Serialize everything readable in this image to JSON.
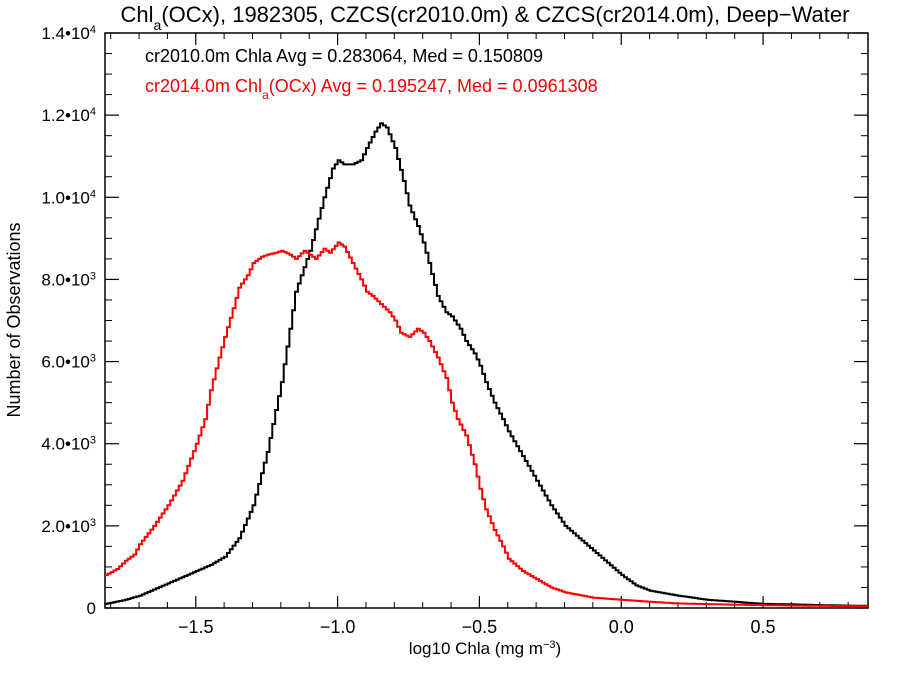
{
  "chart_data": {
    "type": "line",
    "title_html": "Chl<tspan baseline-shift=\"sub\" font-size=\"14\">a</tspan>(OCx), 1982305, CZCS(cr2010.0m) &amp; CZCS(cr2014.0m), Deep-Water",
    "title": {
      "main": "Chl",
      "sub": "a",
      "rest": "(OCx), 1982305, CZCS(cr2010.0m) & CZCS(cr2014.0m), Deep−Water"
    },
    "xlabel": {
      "main": "log10 Chla (mg m",
      "sup": "−3",
      "end": ")"
    },
    "ylabel": "Number of Observations",
    "xlim": [
      -1.82,
      0.87
    ],
    "ylim": [
      0,
      14000
    ],
    "x_ticks": [
      {
        "value": -1.5,
        "label": "−1.5"
      },
      {
        "value": -1.0,
        "label": "−1.0"
      },
      {
        "value": -0.5,
        "label": "−0.5"
      },
      {
        "value": 0.0,
        "label": "0.0"
      },
      {
        "value": 0.5,
        "label": "0.5"
      }
    ],
    "y_ticks": [
      {
        "value": 0,
        "mant": "0",
        "exp": ""
      },
      {
        "value": 2000,
        "mant": "2.0•10",
        "exp": "3"
      },
      {
        "value": 4000,
        "mant": "4.0•10",
        "exp": "3"
      },
      {
        "value": 6000,
        "mant": "6.0•10",
        "exp": "3"
      },
      {
        "value": 8000,
        "mant": "8.0•10",
        "exp": "3"
      },
      {
        "value": 10000,
        "mant": "1.0•10",
        "exp": "4"
      },
      {
        "value": 12000,
        "mant": "1.2•10",
        "exp": "4"
      },
      {
        "value": 14000,
        "mant": "1.4•10",
        "exp": "4"
      }
    ],
    "grid": false,
    "legend": {
      "placement": "top-left",
      "entries": [
        {
          "text": "cr2010.0m Chla Avg = 0.283064, Med = 0.150809",
          "color": "#000000"
        },
        {
          "main": "cr2014.0m Chl",
          "sub": "a",
          "rest": "(OCx) Avg = 0.195247, Med = 0.0961308",
          "color": "#ff0000"
        }
      ]
    },
    "series": [
      {
        "name": "cr2010.0m",
        "color": "#000000",
        "step": true,
        "points": [
          [
            -1.82,
            100
          ],
          [
            -1.75,
            200
          ],
          [
            -1.7,
            300
          ],
          [
            -1.65,
            450
          ],
          [
            -1.6,
            600
          ],
          [
            -1.55,
            750
          ],
          [
            -1.5,
            900
          ],
          [
            -1.45,
            1050
          ],
          [
            -1.4,
            1250
          ],
          [
            -1.35,
            1700
          ],
          [
            -1.3,
            2500
          ],
          [
            -1.25,
            3800
          ],
          [
            -1.2,
            5500
          ],
          [
            -1.17,
            6800
          ],
          [
            -1.15,
            7700
          ],
          [
            -1.1,
            8700
          ],
          [
            -1.05,
            10000
          ],
          [
            -1.02,
            10700
          ],
          [
            -1.0,
            10900
          ],
          [
            -0.98,
            10800
          ],
          [
            -0.95,
            10800
          ],
          [
            -0.92,
            10900
          ],
          [
            -0.9,
            11200
          ],
          [
            -0.87,
            11600
          ],
          [
            -0.85,
            11800
          ],
          [
            -0.83,
            11700
          ],
          [
            -0.8,
            11200
          ],
          [
            -0.77,
            10400
          ],
          [
            -0.75,
            9800
          ],
          [
            -0.72,
            9300
          ],
          [
            -0.7,
            8900
          ],
          [
            -0.68,
            8400
          ],
          [
            -0.65,
            7600
          ],
          [
            -0.62,
            7200
          ],
          [
            -0.6,
            7100
          ],
          [
            -0.57,
            6800
          ],
          [
            -0.55,
            6500
          ],
          [
            -0.52,
            6200
          ],
          [
            -0.5,
            5900
          ],
          [
            -0.48,
            5500
          ],
          [
            -0.45,
            5000
          ],
          [
            -0.42,
            4600
          ],
          [
            -0.4,
            4300
          ],
          [
            -0.35,
            3700
          ],
          [
            -0.3,
            3100
          ],
          [
            -0.25,
            2500
          ],
          [
            -0.2,
            2000
          ],
          [
            -0.15,
            1700
          ],
          [
            -0.1,
            1400
          ],
          [
            -0.05,
            1100
          ],
          [
            0.0,
            800
          ],
          [
            0.05,
            550
          ],
          [
            0.1,
            420
          ],
          [
            0.2,
            300
          ],
          [
            0.3,
            200
          ],
          [
            0.4,
            150
          ],
          [
            0.5,
            100
          ],
          [
            0.6,
            90
          ],
          [
            0.7,
            70
          ],
          [
            0.87,
            50
          ]
        ]
      },
      {
        "name": "cr2014.0m",
        "color": "#ff0000",
        "step": true,
        "points": [
          [
            -1.82,
            800
          ],
          [
            -1.78,
            950
          ],
          [
            -1.75,
            1150
          ],
          [
            -1.72,
            1300
          ],
          [
            -1.7,
            1550
          ],
          [
            -1.65,
            2000
          ],
          [
            -1.6,
            2500
          ],
          [
            -1.55,
            3100
          ],
          [
            -1.5,
            4000
          ],
          [
            -1.47,
            4600
          ],
          [
            -1.45,
            5300
          ],
          [
            -1.42,
            6100
          ],
          [
            -1.4,
            6600
          ],
          [
            -1.37,
            7300
          ],
          [
            -1.35,
            7800
          ],
          [
            -1.32,
            8100
          ],
          [
            -1.3,
            8400
          ],
          [
            -1.27,
            8550
          ],
          [
            -1.25,
            8600
          ],
          [
            -1.22,
            8650
          ],
          [
            -1.2,
            8700
          ],
          [
            -1.17,
            8600
          ],
          [
            -1.15,
            8500
          ],
          [
            -1.12,
            8700
          ],
          [
            -1.1,
            8600
          ],
          [
            -1.08,
            8500
          ],
          [
            -1.05,
            8750
          ],
          [
            -1.03,
            8650
          ],
          [
            -1.0,
            8900
          ],
          [
            -0.98,
            8800
          ],
          [
            -0.95,
            8400
          ],
          [
            -0.92,
            8000
          ],
          [
            -0.9,
            7700
          ],
          [
            -0.88,
            7600
          ],
          [
            -0.85,
            7400
          ],
          [
            -0.82,
            7200
          ],
          [
            -0.8,
            7000
          ],
          [
            -0.78,
            6700
          ],
          [
            -0.75,
            6600
          ],
          [
            -0.72,
            6800
          ],
          [
            -0.7,
            6700
          ],
          [
            -0.68,
            6500
          ],
          [
            -0.65,
            6100
          ],
          [
            -0.62,
            5600
          ],
          [
            -0.6,
            5000
          ],
          [
            -0.58,
            4600
          ],
          [
            -0.55,
            4200
          ],
          [
            -0.52,
            3500
          ],
          [
            -0.5,
            2900
          ],
          [
            -0.48,
            2400
          ],
          [
            -0.45,
            1900
          ],
          [
            -0.42,
            1500
          ],
          [
            -0.4,
            1200
          ],
          [
            -0.35,
            900
          ],
          [
            -0.3,
            700
          ],
          [
            -0.25,
            500
          ],
          [
            -0.2,
            380
          ],
          [
            -0.1,
            250
          ],
          [
            0.0,
            200
          ],
          [
            0.1,
            150
          ],
          [
            0.2,
            110
          ],
          [
            0.4,
            80
          ],
          [
            0.6,
            60
          ],
          [
            0.87,
            40
          ]
        ]
      }
    ]
  }
}
